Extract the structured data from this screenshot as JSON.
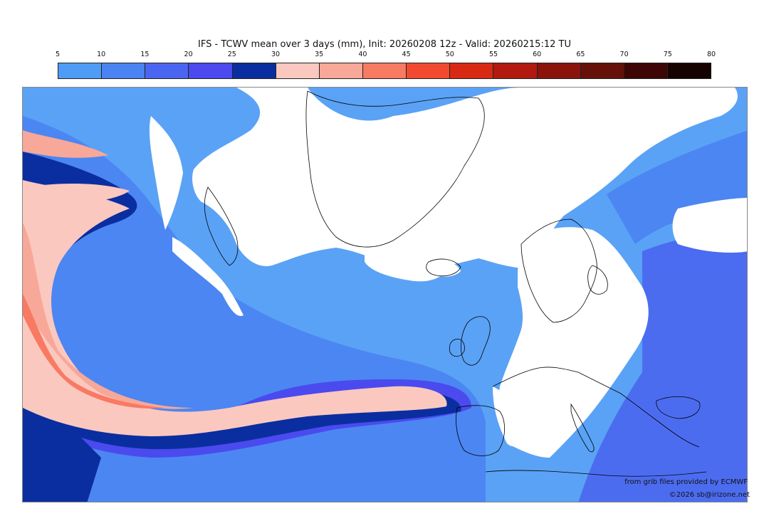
{
  "title": "IFS - TCWV mean over 3 days (mm), Init: 20260208 12z - Valid: 20260215:12 TU",
  "colorbar": {
    "ticks": [
      "5",
      "10",
      "15",
      "20",
      "25",
      "30",
      "35",
      "40",
      "45",
      "50",
      "55",
      "60",
      "65",
      "70",
      "75",
      "80"
    ],
    "colors": [
      "#4f9cf6",
      "#4a83f2",
      "#4a66f0",
      "#4a4aee",
      "#0a2ea0",
      "#fbc8c0",
      "#f7a898",
      "#f87a62",
      "#f24a30",
      "#d82a12",
      "#b21a10",
      "#8a140c",
      "#651008",
      "#3d0604",
      "#170202"
    ]
  },
  "map": {
    "background_color": "#5aa2f5",
    "land_color": "#ffffff",
    "coastline_color": "#000000"
  },
  "credit_line1": "from grib files provided by ECMWF",
  "credit_line2": "©2026 sb@irizone.net"
}
